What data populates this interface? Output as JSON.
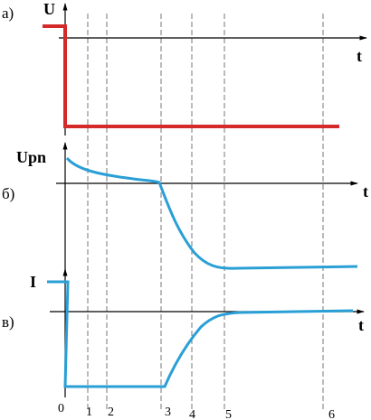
{
  "panels": [
    {
      "label": "а)",
      "quantity": "U",
      "axis": "t"
    },
    {
      "label": "б)",
      "quantity": "Upn",
      "axis": "t"
    },
    {
      "label": "в)",
      "quantity": "I",
      "axis": "t"
    }
  ],
  "time_marks": [
    "0",
    "1",
    "2",
    "3",
    "4",
    "5",
    "6"
  ]
}
